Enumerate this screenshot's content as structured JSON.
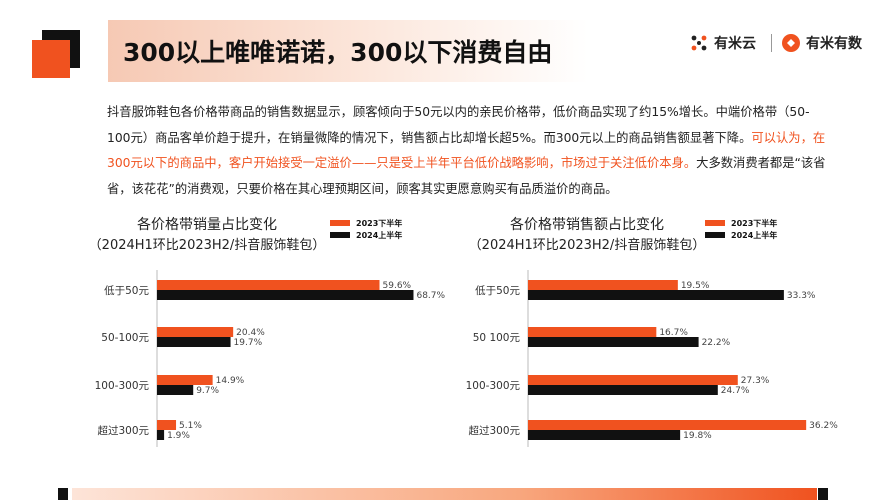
{
  "header": {
    "title": "300以上唯唯诺诺，300以下消费自由",
    "logo1_text": "有米云",
    "logo2_text": "有米有数"
  },
  "paragraph": {
    "part1": "抖音服饰鞋包各价格带商品的销售数据显示，顾客倾向于50元以内的亲民价格带，低价商品实现了约15%增长。中端价格带（50-100元）商品客单价趋于提升，在销量微降的情况下，销售额占比却增长超5%。而300元以上的商品销售额显著下降。",
    "highlight": "可以认为，在300元以下的商品中，客户开始接受一定溢价——只是受上半年平台低价战略影响，市场过于关注低价本身。",
    "part2": "大多数消费者都是“该省省，该花花”的消费观，只要价格在其心理预期区间，顾客其实更愿意购买有品质溢价的商品。"
  },
  "colors": {
    "accent": "#f0521f",
    "black": "#111111"
  },
  "chart_data": [
    {
      "type": "bar",
      "orientation": "horizontal",
      "title": "各价格带销量占比变化",
      "subtitle": "（2024H1环比2023H2/抖音服饰鞋包）",
      "categories": [
        "低于50元",
        "50-100元",
        "100-300元",
        "超过300元"
      ],
      "series": [
        {
          "name": "2023下半年",
          "color": "#f0521f",
          "values": [
            59.6,
            20.4,
            14.9,
            5.1
          ],
          "labels": [
            "59.6%",
            "20.4%",
            "14.9%",
            "5.1%"
          ]
        },
        {
          "name": "2024上半年",
          "color": "#111111",
          "values": [
            68.7,
            19.7,
            9.7,
            1.9
          ],
          "labels": [
            "68.7%",
            "19.7%",
            "9.7%",
            "1.9%"
          ]
        }
      ],
      "xlim": [
        0,
        75
      ]
    },
    {
      "type": "bar",
      "orientation": "horizontal",
      "title": "各价格带销售额占比变化",
      "subtitle": "（2024H1环比2023H2/抖音服饰鞋包）",
      "categories": [
        "低于50元",
        "50 100元",
        "100-300元",
        "超过300元"
      ],
      "series": [
        {
          "name": "2023下半年",
          "color": "#f0521f",
          "values": [
            19.5,
            16.7,
            27.3,
            36.2
          ],
          "labels": [
            "19.5%",
            "16.7%",
            "27.3%",
            "36.2%"
          ]
        },
        {
          "name": "2024上半年",
          "color": "#111111",
          "values": [
            33.3,
            22.2,
            24.7,
            19.8
          ],
          "labels": [
            "33.3%",
            "22.2%",
            "24.7%",
            "19.8%"
          ]
        }
      ],
      "xlim": [
        0,
        38
      ]
    }
  ]
}
